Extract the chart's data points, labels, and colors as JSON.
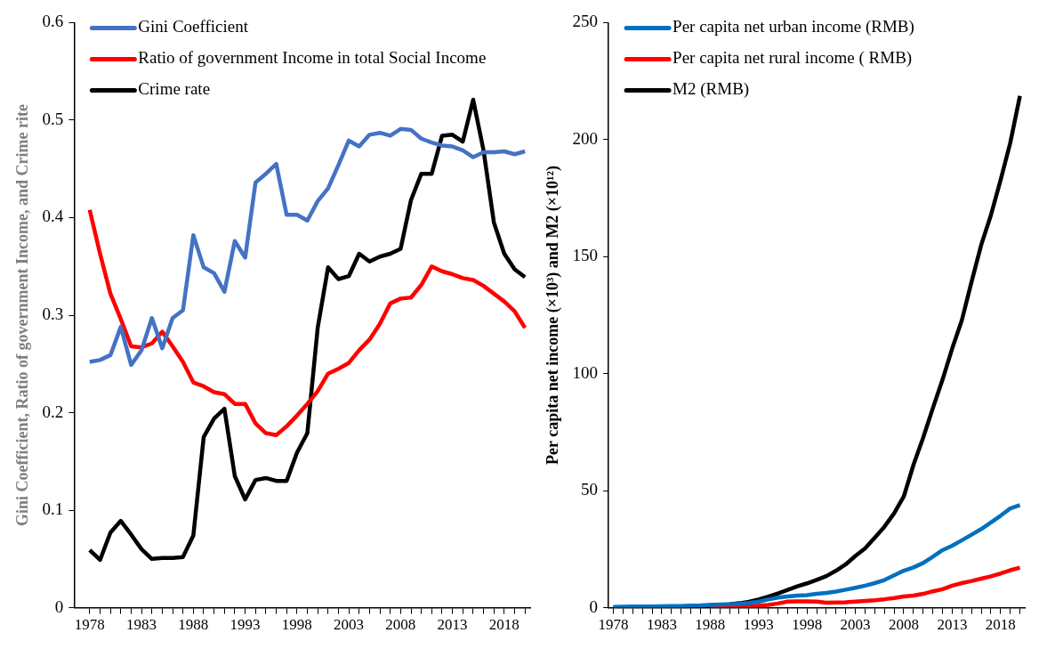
{
  "chart_data": [
    {
      "type": "line",
      "ylabel": "Gini Coefficient, Ratio of government Income, and Crime rite",
      "legend": "top left",
      "grid": false,
      "x": [
        1978,
        1979,
        1980,
        1981,
        1982,
        1983,
        1984,
        1985,
        1986,
        1987,
        1988,
        1989,
        1990,
        1991,
        1992,
        1993,
        1994,
        1995,
        1996,
        1997,
        1998,
        1999,
        2000,
        2001,
        2002,
        2003,
        2004,
        2005,
        2006,
        2007,
        2008,
        2009,
        2010,
        2011,
        2012,
        2013,
        2014,
        2015,
        2016,
        2017,
        2018,
        2019,
        2020
      ],
      "xlim": [
        1976.5,
        2020.5
      ],
      "xticks": [
        1978,
        {
          "value": 1979,
          "label": null
        },
        {
          "value": 1980,
          "label": null
        },
        {
          "value": 1981,
          "label": null
        },
        {
          "value": 1982,
          "label": null
        },
        1983,
        {
          "value": 1984,
          "label": null
        },
        {
          "value": 1985,
          "label": null
        },
        {
          "value": 1986,
          "label": null
        },
        {
          "value": 1987,
          "label": null
        },
        1988,
        {
          "value": 1989,
          "label": null
        },
        {
          "value": 1990,
          "label": null
        },
        {
          "value": 1991,
          "label": null
        },
        {
          "value": 1992,
          "label": null
        },
        1993,
        {
          "value": 1994,
          "label": null
        },
        {
          "value": 1995,
          "label": null
        },
        {
          "value": 1996,
          "label": null
        },
        {
          "value": 1997,
          "label": null
        },
        1998,
        {
          "value": 1999,
          "label": null
        },
        {
          "value": 2000,
          "label": null
        },
        {
          "value": 2001,
          "label": null
        },
        {
          "value": 2002,
          "label": null
        },
        2003,
        {
          "value": 2004,
          "label": null
        },
        {
          "value": 2005,
          "label": null
        },
        {
          "value": 2006,
          "label": null
        },
        {
          "value": 2007,
          "label": null
        },
        2008,
        {
          "value": 2009,
          "label": null
        },
        {
          "value": 2010,
          "label": null
        },
        {
          "value": 2011,
          "label": null
        },
        {
          "value": 2012,
          "label": null
        },
        2013,
        {
          "value": 2014,
          "label": null
        },
        {
          "value": 2015,
          "label": null
        },
        {
          "value": 2016,
          "label": null
        },
        {
          "value": 2017,
          "label": null
        },
        2018,
        {
          "value": 2019,
          "label": null
        },
        {
          "value": 2020,
          "label": null
        }
      ],
      "ylim": [
        0,
        0.6
      ],
      "yticks": [
        0,
        0.1,
        0.2,
        0.3,
        0.4,
        0.5,
        0.6
      ],
      "series": [
        {
          "name": "Gini Coefficient",
          "color": "#4472c4",
          "values": [
            0.252,
            0.254,
            0.259,
            0.288,
            0.249,
            0.264,
            0.297,
            0.266,
            0.297,
            0.305,
            0.382,
            0.349,
            0.343,
            0.324,
            0.376,
            0.359,
            0.436,
            0.445,
            0.455,
            0.403,
            0.403,
            0.397,
            0.417,
            0.43,
            0.454,
            0.479,
            0.473,
            0.485,
            0.487,
            0.484,
            0.491,
            0.49,
            0.481,
            0.477,
            0.474,
            0.473,
            0.469,
            0.462,
            0.467,
            0.467,
            0.468,
            0.465,
            0.468
          ]
        },
        {
          "name": "Ratio of government Income in total Social Income",
          "color": "#ff0000",
          "values": [
            0.408,
            0.363,
            0.322,
            0.296,
            0.268,
            0.267,
            0.271,
            0.283,
            0.268,
            0.252,
            0.231,
            0.227,
            0.221,
            0.219,
            0.209,
            0.209,
            0.189,
            0.179,
            0.177,
            0.186,
            0.197,
            0.209,
            0.222,
            0.24,
            0.245,
            0.251,
            0.264,
            0.275,
            0.291,
            0.312,
            0.317,
            0.318,
            0.331,
            0.35,
            0.345,
            0.342,
            0.338,
            0.336,
            0.33,
            0.322,
            0.314,
            0.304,
            0.287
          ]
        },
        {
          "name": "Crime rate",
          "color": "#000000",
          "values": [
            0.059,
            0.049,
            0.077,
            0.089,
            0.075,
            0.06,
            0.05,
            0.051,
            0.051,
            0.052,
            0.074,
            0.175,
            0.194,
            0.204,
            0.135,
            0.111,
            0.131,
            0.133,
            0.13,
            0.13,
            0.159,
            0.179,
            0.287,
            0.349,
            0.337,
            0.34,
            0.363,
            0.355,
            0.36,
            0.363,
            0.368,
            0.418,
            0.445,
            0.445,
            0.484,
            0.485,
            0.478,
            0.521,
            0.469,
            0.395,
            0.363,
            0.347,
            0.339
          ]
        }
      ]
    },
    {
      "type": "line",
      "ylabel": "Per capita net income (×10³) and M2 (×10¹²)",
      "legend": "top left",
      "grid": false,
      "x": [
        1978,
        1979,
        1980,
        1981,
        1982,
        1983,
        1984,
        1985,
        1986,
        1987,
        1988,
        1989,
        1990,
        1991,
        1992,
        1993,
        1994,
        1995,
        1996,
        1997,
        1998,
        1999,
        2000,
        2001,
        2002,
        2003,
        2004,
        2005,
        2006,
        2007,
        2008,
        2009,
        2010,
        2011,
        2012,
        2013,
        2014,
        2015,
        2016,
        2017,
        2018,
        2019,
        2020
      ],
      "xlim": [
        1977.5,
        2020.5
      ],
      "xticks": [
        1978,
        {
          "value": 1979,
          "label": null
        },
        {
          "value": 1980,
          "label": null
        },
        {
          "value": 1981,
          "label": null
        },
        {
          "value": 1982,
          "label": null
        },
        1983,
        {
          "value": 1984,
          "label": null
        },
        {
          "value": 1985,
          "label": null
        },
        {
          "value": 1986,
          "label": null
        },
        {
          "value": 1987,
          "label": null
        },
        1988,
        {
          "value": 1989,
          "label": null
        },
        {
          "value": 1990,
          "label": null
        },
        {
          "value": 1991,
          "label": null
        },
        {
          "value": 1992,
          "label": null
        },
        1993,
        {
          "value": 1994,
          "label": null
        },
        {
          "value": 1995,
          "label": null
        },
        {
          "value": 1996,
          "label": null
        },
        {
          "value": 1997,
          "label": null
        },
        1998,
        {
          "value": 1999,
          "label": null
        },
        {
          "value": 2000,
          "label": null
        },
        {
          "value": 2001,
          "label": null
        },
        {
          "value": 2002,
          "label": null
        },
        2003,
        {
          "value": 2004,
          "label": null
        },
        {
          "value": 2005,
          "label": null
        },
        {
          "value": 2006,
          "label": null
        },
        {
          "value": 2007,
          "label": null
        },
        2008,
        {
          "value": 2009,
          "label": null
        },
        {
          "value": 2010,
          "label": null
        },
        {
          "value": 2011,
          "label": null
        },
        {
          "value": 2012,
          "label": null
        },
        2013,
        {
          "value": 2014,
          "label": null
        },
        {
          "value": 2015,
          "label": null
        },
        {
          "value": 2016,
          "label": null
        },
        {
          "value": 2017,
          "label": null
        },
        2018,
        {
          "value": 2019,
          "label": null
        },
        {
          "value": 2020,
          "label": null
        }
      ],
      "ylim": [
        0,
        250
      ],
      "yticks": [
        0,
        50,
        100,
        150,
        200,
        250
      ],
      "series": [
        {
          "name": "Per capita net urban income (RMB)",
          "color": "#0070c0",
          "values": [
            0.3,
            0.4,
            0.5,
            0.5,
            0.5,
            0.6,
            0.7,
            0.7,
            0.9,
            1.0,
            1.2,
            1.4,
            1.5,
            1.7,
            2.0,
            2.6,
            3.5,
            4.3,
            4.8,
            5.2,
            5.4,
            5.9,
            6.3,
            6.9,
            7.7,
            8.5,
            9.4,
            10.5,
            11.8,
            13.8,
            15.8,
            17.2,
            19.1,
            21.8,
            24.6,
            26.5,
            28.8,
            31.2,
            33.6,
            36.4,
            39.3,
            42.4,
            43.8
          ]
        },
        {
          "name": "Per capita net rural income ( RMB)",
          "color": "#ff0000",
          "values": [
            null,
            null,
            null,
            null,
            null,
            null,
            null,
            null,
            null,
            null,
            0.5,
            0.6,
            0.7,
            0.7,
            0.8,
            0.9,
            1.2,
            1.8,
            2.6,
            2.7,
            2.7,
            2.6,
            2.1,
            2.2,
            2.3,
            2.6,
            2.9,
            3.2,
            3.6,
            4.1,
            4.8,
            5.2,
            5.9,
            7.0,
            7.9,
            9.4,
            10.5,
            11.4,
            12.4,
            13.4,
            14.6,
            16.0,
            17.1
          ]
        },
        {
          "name": "M2 (RMB)",
          "color": "#000000",
          "values": [
            0.1,
            0.1,
            0.1,
            0.2,
            0.2,
            0.2,
            0.3,
            0.5,
            0.6,
            0.8,
            1.0,
            1.2,
            1.5,
            1.9,
            2.5,
            3.5,
            4.7,
            6.1,
            7.6,
            9.1,
            10.4,
            11.9,
            13.5,
            15.8,
            18.5,
            22.1,
            25.3,
            29.9,
            34.6,
            40.3,
            47.5,
            61.0,
            72.6,
            85.2,
            97.4,
            110.7,
            122.8,
            139.2,
            155.0,
            167.7,
            182.7,
            198.6,
            218.7
          ]
        }
      ]
    }
  ]
}
